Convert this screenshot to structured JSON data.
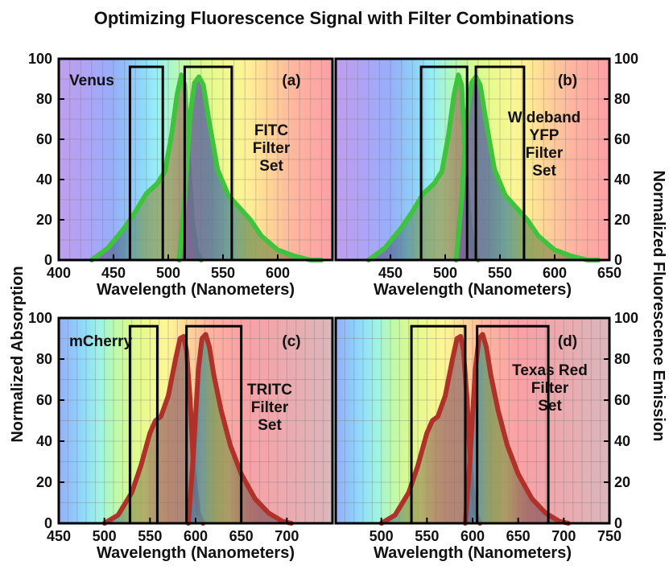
{
  "figure": {
    "title": "Optimizing Fluorescence Signal with Filter Combinations",
    "left_axis_label": "Normalized Absorption",
    "right_axis_label": "Normalized Fluorescence Emission"
  },
  "colors": {
    "frame": "#000000",
    "green_curve": "#3fc33f",
    "red_curve": "#b0302a",
    "filter_box": "#000000"
  },
  "chart_data": [
    {
      "type": "area",
      "panel_label": "(a)",
      "dye": "Venus",
      "filter_set": [
        "FITC",
        "Filter",
        "Set"
      ],
      "xlabel": "Wavelength (Nanometers)",
      "xlim": [
        400,
        650
      ],
      "xticks": [
        400,
        450,
        500,
        550,
        600
      ],
      "ylim": [
        0,
        100
      ],
      "yticks": [
        0,
        20,
        40,
        60,
        80,
        100
      ],
      "curve_color": "green",
      "series": [
        {
          "name": "Absorption",
          "x": [
            430,
            445,
            460,
            470,
            480,
            490,
            497,
            503,
            508,
            512,
            515,
            518,
            522,
            526,
            530
          ],
          "y": [
            0,
            6,
            16,
            24,
            33,
            38,
            44,
            62,
            82,
            92,
            87,
            55,
            20,
            4,
            0
          ]
        },
        {
          "name": "Emission",
          "x": [
            510,
            515,
            520,
            524,
            528,
            532,
            537,
            545,
            555,
            565,
            575,
            585,
            600,
            615,
            630,
            640
          ],
          "y": [
            0,
            30,
            72,
            88,
            91,
            87,
            70,
            45,
            32,
            26,
            20,
            12,
            5,
            2,
            0,
            0
          ]
        }
      ],
      "filters": [
        {
          "name": "Excitation",
          "start": 465,
          "end": 495,
          "top": 96
        },
        {
          "name": "Emission",
          "start": 515,
          "end": 558,
          "top": 96
        }
      ]
    },
    {
      "type": "area",
      "panel_label": "(b)",
      "dye": "",
      "filter_set": [
        "Wideband",
        "YFP",
        "Filter",
        "Set"
      ],
      "xlabel": "Wavelength (Nanometers)",
      "xlim": [
        400,
        650
      ],
      "xticks": [
        450,
        500,
        550,
        600,
        650
      ],
      "ylim": [
        0,
        100
      ],
      "yticks": [
        0,
        20,
        40,
        60,
        80,
        100
      ],
      "curve_color": "green",
      "series": [
        {
          "name": "Absorption",
          "x": [
            430,
            445,
            460,
            470,
            480,
            490,
            497,
            503,
            508,
            512,
            515,
            518,
            522,
            526,
            530
          ],
          "y": [
            0,
            6,
            16,
            24,
            33,
            38,
            44,
            62,
            82,
            92,
            87,
            55,
            20,
            4,
            0
          ]
        },
        {
          "name": "Emission",
          "x": [
            510,
            515,
            520,
            524,
            528,
            532,
            537,
            545,
            555,
            565,
            575,
            585,
            600,
            615,
            630,
            640
          ],
          "y": [
            0,
            30,
            72,
            88,
            91,
            87,
            70,
            45,
            32,
            26,
            20,
            12,
            5,
            2,
            0,
            0
          ]
        }
      ],
      "filters": [
        {
          "name": "Excitation",
          "start": 478,
          "end": 520,
          "top": 96
        },
        {
          "name": "Emission",
          "start": 528,
          "end": 572,
          "top": 96
        }
      ]
    },
    {
      "type": "area",
      "panel_label": "(c)",
      "dye": "mCherry",
      "filter_set": [
        "TRITC",
        "Filter",
        "Set"
      ],
      "xlabel": "Wavelength (Nanometers)",
      "xlim": [
        450,
        750
      ],
      "xticks": [
        450,
        500,
        550,
        600,
        650,
        700
      ],
      "ylim": [
        0,
        100
      ],
      "yticks": [
        0,
        20,
        40,
        60,
        80,
        100
      ],
      "curve_color": "red",
      "series": [
        {
          "name": "Absorption",
          "x": [
            500,
            515,
            530,
            540,
            550,
            556,
            562,
            570,
            578,
            583,
            587,
            590,
            594,
            598,
            603,
            608
          ],
          "y": [
            0,
            4,
            15,
            28,
            44,
            50,
            52,
            62,
            80,
            90,
            91,
            84,
            60,
            25,
            5,
            0
          ]
        },
        {
          "name": "Emission",
          "x": [
            592,
            597,
            603,
            607,
            611,
            615,
            620,
            628,
            638,
            650,
            665,
            680,
            695,
            705
          ],
          "y": [
            0,
            30,
            75,
            90,
            92,
            86,
            72,
            55,
            38,
            24,
            12,
            5,
            1,
            0
          ]
        }
      ],
      "filters": [
        {
          "name": "Excitation",
          "start": 528,
          "end": 558,
          "top": 96
        },
        {
          "name": "Emission",
          "start": 590,
          "end": 650,
          "top": 96
        }
      ]
    },
    {
      "type": "area",
      "panel_label": "(d)",
      "dye": "",
      "filter_set": [
        "Texas Red",
        "Filter",
        "Set"
      ],
      "xlabel": "Wavelength (Nanometers)",
      "xlim": [
        450,
        750
      ],
      "xticks": [
        500,
        550,
        600,
        650,
        700,
        750
      ],
      "ylim": [
        0,
        100
      ],
      "yticks": [
        0,
        20,
        40,
        60,
        80,
        100
      ],
      "curve_color": "red",
      "series": [
        {
          "name": "Absorption",
          "x": [
            500,
            515,
            530,
            540,
            550,
            556,
            562,
            570,
            578,
            583,
            587,
            590,
            594,
            598,
            603,
            608
          ],
          "y": [
            0,
            4,
            15,
            28,
            44,
            50,
            52,
            62,
            80,
            90,
            91,
            84,
            60,
            25,
            5,
            0
          ]
        },
        {
          "name": "Emission",
          "x": [
            592,
            597,
            603,
            607,
            611,
            615,
            620,
            628,
            638,
            650,
            665,
            680,
            695,
            705
          ],
          "y": [
            0,
            30,
            75,
            90,
            92,
            86,
            72,
            55,
            38,
            24,
            12,
            5,
            1,
            0
          ]
        }
      ],
      "filters": [
        {
          "name": "Excitation",
          "start": 533,
          "end": 592,
          "top": 96
        },
        {
          "name": "Emission",
          "start": 605,
          "end": 683,
          "top": 96
        }
      ]
    }
  ]
}
